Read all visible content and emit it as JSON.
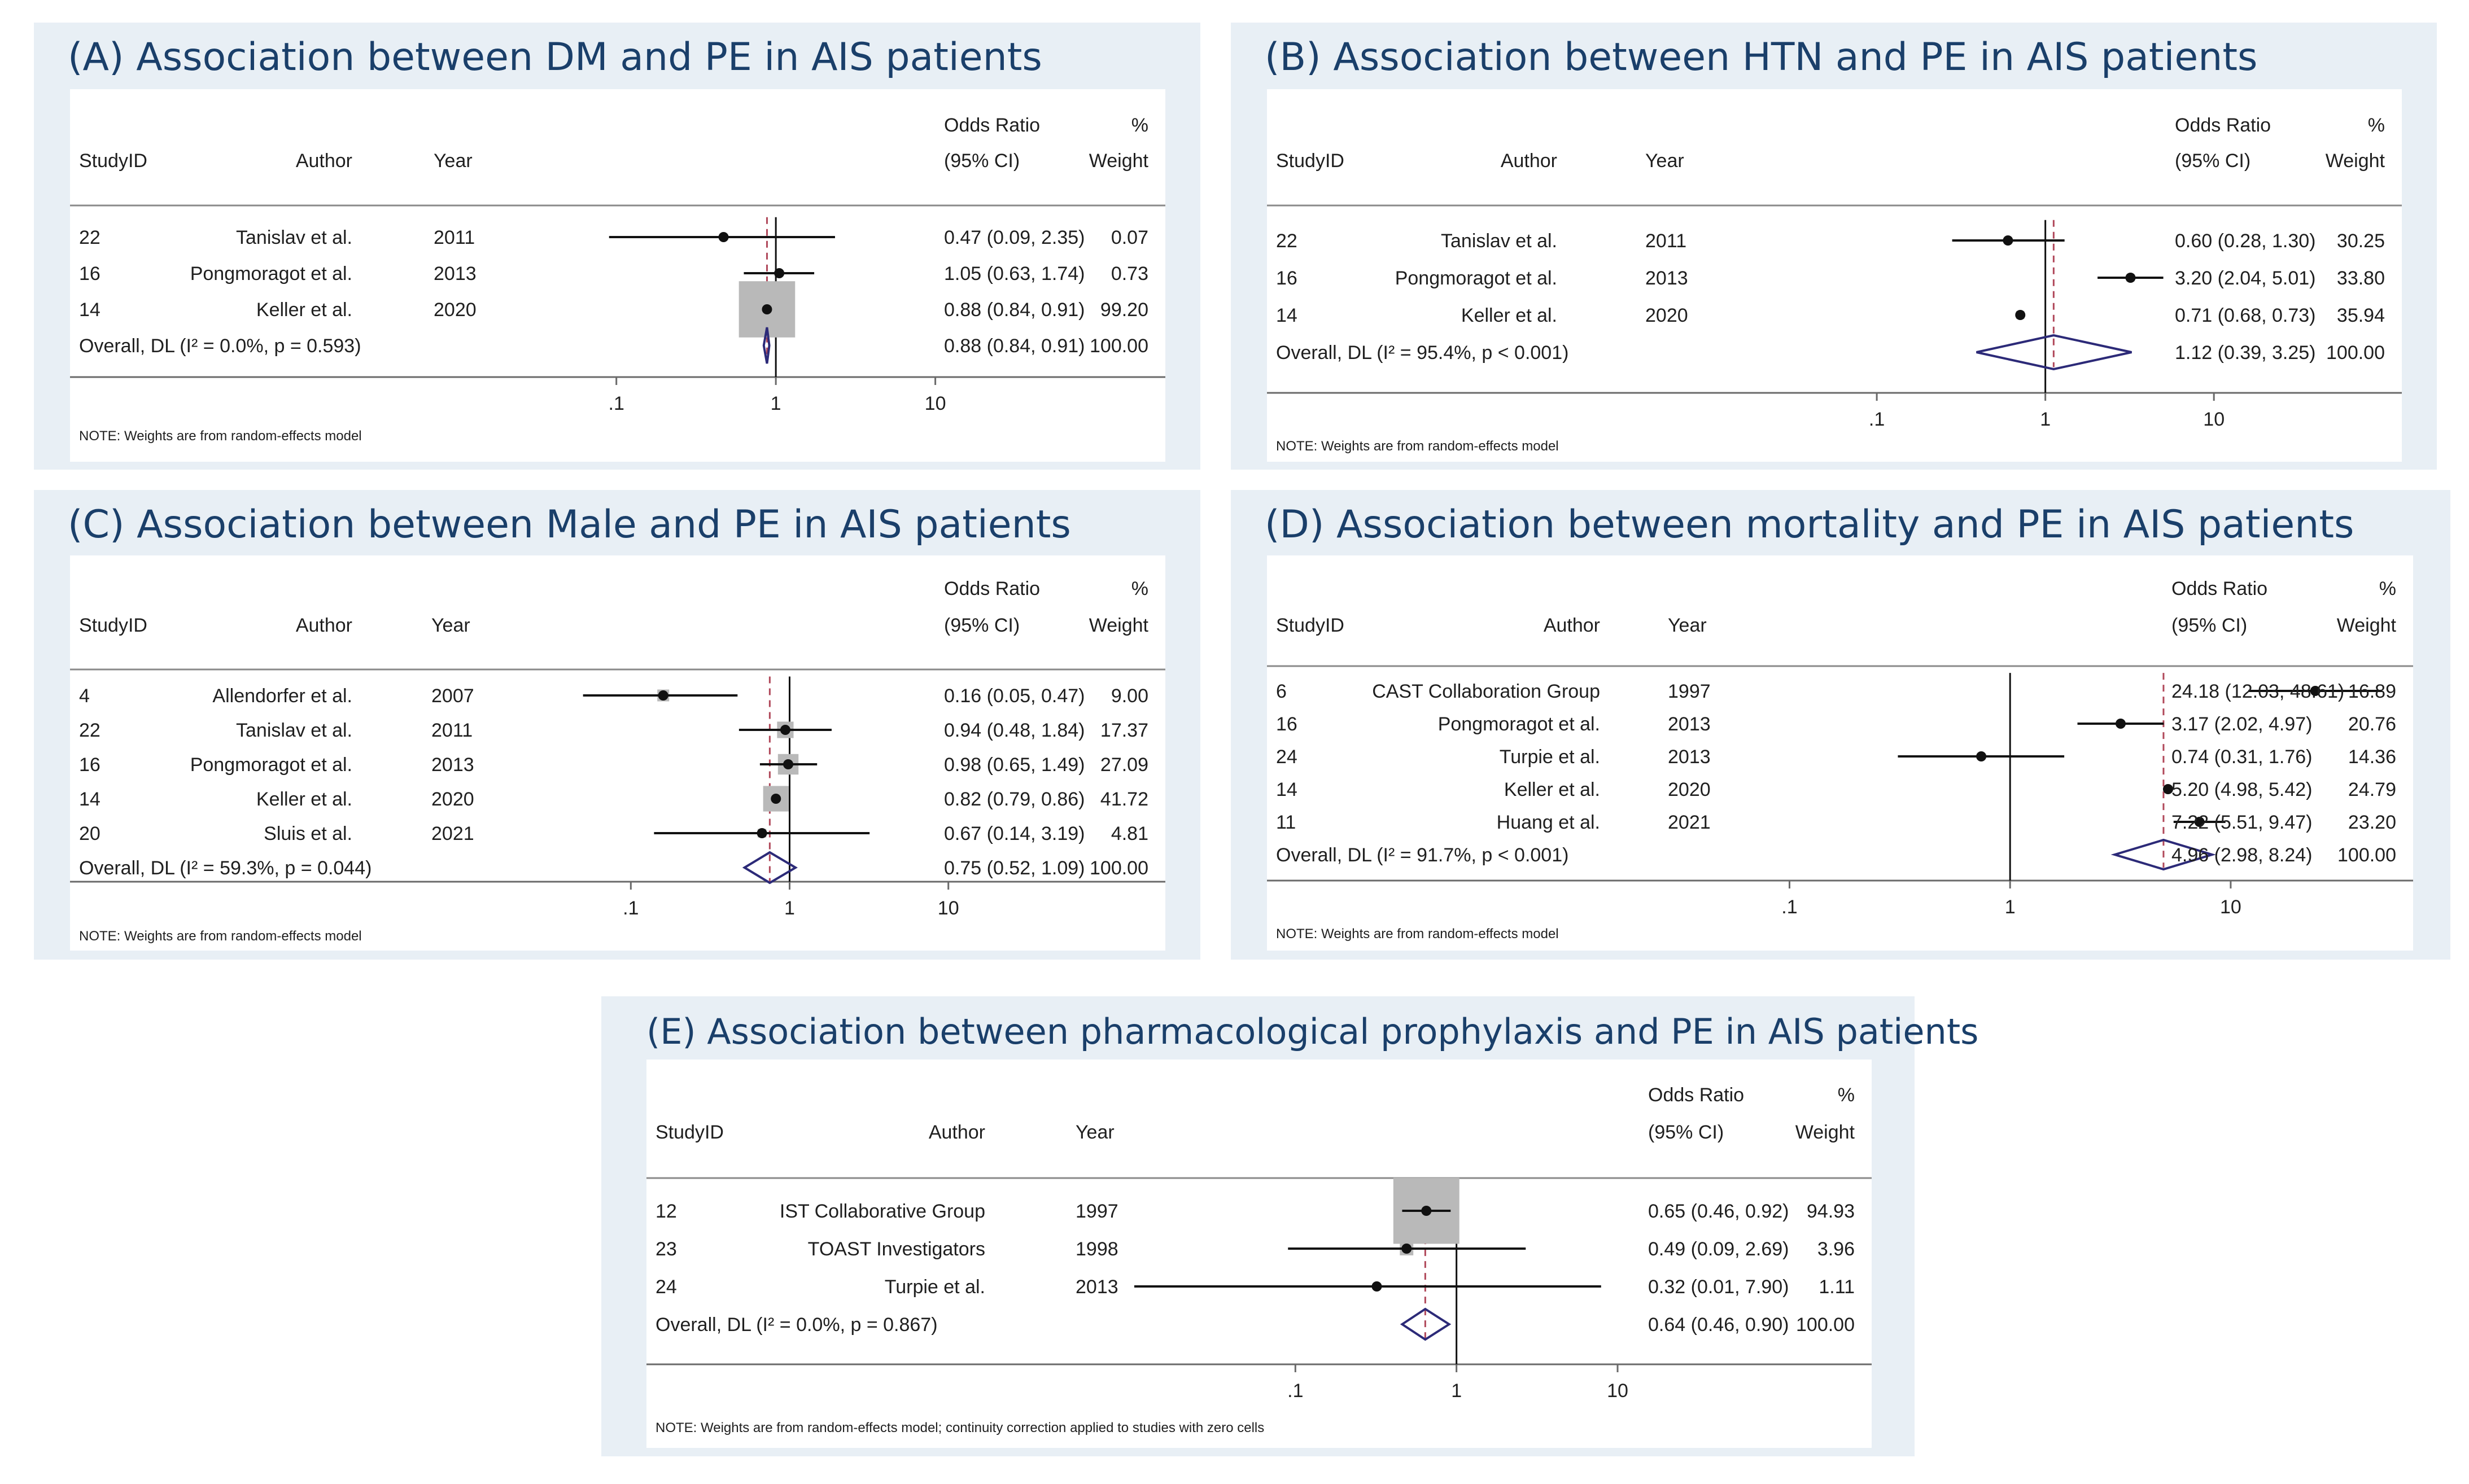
{
  "chart_data": [
    {
      "type": "forest",
      "title": "(A)    Association between DM and PE in AIS patients",
      "columns": {
        "studyid": "StudyID",
        "author": "Author",
        "year": "Year",
        "or_top": "Odds Ratio",
        "or_bottom": "(95% CI)",
        "w_top": "%",
        "w_bottom": "Weight"
      },
      "studies": [
        {
          "id": "22",
          "author": "Tanislav et al.",
          "year": "2011",
          "or": 0.47,
          "lo": 0.09,
          "hi": 2.35,
          "weight": 0.07,
          "ci_text": "0.47 (0.09, 2.35)",
          "weight_text": "0.07"
        },
        {
          "id": "16",
          "author": "Pongmoragot et al.",
          "year": "2013",
          "or": 1.05,
          "lo": 0.63,
          "hi": 1.74,
          "weight": 0.73,
          "ci_text": "1.05 (0.63, 1.74)",
          "weight_text": "0.73"
        },
        {
          "id": "14",
          "author": "Keller et al.",
          "year": "2020",
          "or": 0.88,
          "lo": 0.84,
          "hi": 0.91,
          "weight": 99.2,
          "ci_text": "0.88 (0.84, 0.91)",
          "weight_text": "99.20"
        }
      ],
      "overall": {
        "label": "Overall, DL (I² = 0.0%, p = 0.593)",
        "or": 0.88,
        "lo": 0.84,
        "hi": 0.91,
        "ci_text": "0.88 (0.84, 0.91)",
        "weight_text": "100.00"
      },
      "x_scale": "log",
      "xlim": [
        0.03,
        25
      ],
      "ticks": [
        0.1,
        1,
        10
      ],
      "tick_labels": [
        ".1",
        "1",
        "10"
      ],
      "note": "NOTE: Weights are from random-effects model"
    },
    {
      "type": "forest",
      "title": "(B)    Association between HTN and PE in AIS patients",
      "columns": {
        "studyid": "StudyID",
        "author": "Author",
        "year": "Year",
        "or_top": "Odds Ratio",
        "or_bottom": "(95% CI)",
        "w_top": "%",
        "w_bottom": "Weight"
      },
      "studies": [
        {
          "id": "22",
          "author": "Tanislav et al.",
          "year": "2011",
          "or": 0.6,
          "lo": 0.28,
          "hi": 1.3,
          "weight": 30.25,
          "ci_text": "0.60 (0.28, 1.30)",
          "weight_text": "30.25"
        },
        {
          "id": "16",
          "author": "Pongmoragot et al.",
          "year": "2013",
          "or": 3.2,
          "lo": 2.04,
          "hi": 5.01,
          "weight": 33.8,
          "ci_text": "3.20 (2.04, 5.01)",
          "weight_text": "33.80"
        },
        {
          "id": "14",
          "author": "Keller et al.",
          "year": "2020",
          "or": 0.71,
          "lo": 0.68,
          "hi": 0.73,
          "weight": 35.94,
          "ci_text": "0.71 (0.68, 0.73)",
          "weight_text": "35.94"
        }
      ],
      "overall": {
        "label": "Overall, DL (I² = 95.4%, p < 0.001)",
        "or": 1.12,
        "lo": 0.39,
        "hi": 3.25,
        "ci_text": "1.12 (0.39, 3.25)",
        "weight_text": "100.00"
      },
      "x_scale": "log",
      "xlim": [
        0.03,
        25
      ],
      "ticks": [
        0.1,
        1,
        10
      ],
      "tick_labels": [
        ".1",
        "1",
        "10"
      ],
      "note": "NOTE: Weights are from random-effects model"
    },
    {
      "type": "forest",
      "title": "(C)    Association between Male and PE in AIS patients",
      "columns": {
        "studyid": "StudyID",
        "author": "Author",
        "year": "Year",
        "or_top": "Odds Ratio",
        "or_bottom": "(95% CI)",
        "w_top": "%",
        "w_bottom": "Weight"
      },
      "studies": [
        {
          "id": "4",
          "author": "Allendorfer et al.",
          "year": "2007",
          "or": 0.16,
          "lo": 0.05,
          "hi": 0.47,
          "weight": 9.0,
          "ci_text": "0.16 (0.05, 0.47)",
          "weight_text": "9.00"
        },
        {
          "id": "22",
          "author": "Tanislav et al.",
          "year": "2011",
          "or": 0.94,
          "lo": 0.48,
          "hi": 1.84,
          "weight": 17.37,
          "ci_text": "0.94 (0.48, 1.84)",
          "weight_text": "17.37"
        },
        {
          "id": "16",
          "author": "Pongmoragot et al.",
          "year": "2013",
          "or": 0.98,
          "lo": 0.65,
          "hi": 1.49,
          "weight": 27.09,
          "ci_text": "0.98 (0.65, 1.49)",
          "weight_text": "27.09"
        },
        {
          "id": "14",
          "author": "Keller et al.",
          "year": "2020",
          "or": 0.82,
          "lo": 0.79,
          "hi": 0.86,
          "weight": 41.72,
          "ci_text": "0.82 (0.79, 0.86)",
          "weight_text": "41.72"
        },
        {
          "id": "20",
          "author": "Sluis et al.",
          "year": "2021",
          "or": 0.67,
          "lo": 0.14,
          "hi": 3.19,
          "weight": 4.81,
          "ci_text": "0.67 (0.14, 3.19)",
          "weight_text": "4.81"
        }
      ],
      "overall": {
        "label": "Overall, DL (I² = 59.3%, p = 0.044)",
        "or": 0.75,
        "lo": 0.52,
        "hi": 1.09,
        "ci_text": "0.75 (0.52, 1.09)",
        "weight_text": "100.00"
      },
      "x_scale": "log",
      "xlim": [
        0.025,
        22
      ],
      "ticks": [
        0.1,
        1,
        10
      ],
      "tick_labels": [
        ".1",
        "1",
        "10"
      ],
      "note": "NOTE: Weights are from random-effects model"
    },
    {
      "type": "forest",
      "title": "(D)  Association between mortality and PE in AIS patients",
      "columns": {
        "studyid": "StudyID",
        "author": "Author",
        "year": "Year",
        "or_top": "Odds Ratio",
        "or_bottom": "(95% CI)",
        "w_top": "%",
        "w_bottom": "Weight"
      },
      "studies": [
        {
          "id": "6",
          "author": "CAST Collaboration Group",
          "year": "1997",
          "or": 24.18,
          "lo": 12.03,
          "hi": 48.61,
          "weight": 16.89,
          "ci_text": "24.18 (12.03, 48.61)",
          "weight_text": "16.89"
        },
        {
          "id": "16",
          "author": "Pongmoragot et al.",
          "year": "2013",
          "or": 3.17,
          "lo": 2.02,
          "hi": 4.97,
          "weight": 20.76,
          "ci_text": "3.17 (2.02, 4.97)",
          "weight_text": "20.76"
        },
        {
          "id": "24",
          "author": "Turpie et al.",
          "year": "2013",
          "or": 0.74,
          "lo": 0.31,
          "hi": 1.76,
          "weight": 14.36,
          "ci_text": "0.74 (0.31, 1.76)",
          "weight_text": "14.36"
        },
        {
          "id": "14",
          "author": "Keller et al.",
          "year": "2020",
          "or": 5.2,
          "lo": 4.98,
          "hi": 5.42,
          "weight": 24.79,
          "ci_text": "5.20 (4.98, 5.42)",
          "weight_text": "24.79"
        },
        {
          "id": "11",
          "author": "Huang et al.",
          "year": "2021",
          "or": 7.22,
          "lo": 5.51,
          "hi": 9.47,
          "weight": 23.2,
          "ci_text": "7.22 (5.51, 9.47)",
          "weight_text": "23.20"
        }
      ],
      "overall": {
        "label": "Overall, DL (I² = 91.7%, p < 0.001)",
        "or": 4.96,
        "lo": 2.98,
        "hi": 8.24,
        "ci_text": "4.96 (2.98, 8.24)",
        "weight_text": "100.00"
      },
      "x_scale": "log",
      "xlim": [
        0.04,
        50
      ],
      "ticks": [
        0.1,
        1,
        10
      ],
      "tick_labels": [
        ".1",
        "1",
        "10"
      ],
      "note": "NOTE: Weights are from random-effects model"
    },
    {
      "type": "forest",
      "title": "(E) Association between pharmacological prophylaxis and PE in AIS patients",
      "columns": {
        "studyid": "StudyID",
        "author": "Author",
        "year": "Year",
        "or_top": "Odds Ratio",
        "or_bottom": "(95% CI)",
        "w_top": "%",
        "w_bottom": "Weight"
      },
      "studies": [
        {
          "id": "12",
          "author": "IST Collaborative Group",
          "year": "1997",
          "or": 0.65,
          "lo": 0.46,
          "hi": 0.92,
          "weight": 94.93,
          "ci_text": "0.65 (0.46, 0.92)",
          "weight_text": "94.93"
        },
        {
          "id": "23",
          "author": "TOAST Investigators",
          "year": "1998",
          "or": 0.49,
          "lo": 0.09,
          "hi": 2.69,
          "weight": 3.96,
          "ci_text": "0.49 (0.09, 2.69)",
          "weight_text": "3.96"
        },
        {
          "id": "24",
          "author": "Turpie et al.",
          "year": "2013",
          "or": 0.32,
          "lo": 0.01,
          "hi": 7.9,
          "weight": 1.11,
          "ci_text": "0.32 (0.01, 7.90)",
          "weight_text": "1.11"
        }
      ],
      "overall": {
        "label": "Overall, DL (I² = 0.0%, p = 0.867)",
        "or": 0.64,
        "lo": 0.46,
        "hi": 0.9,
        "ci_text": "0.64 (0.46, 0.90)",
        "weight_text": "100.00"
      },
      "x_scale": "log",
      "xlim": [
        0.01,
        10
      ],
      "ticks": [
        0.1,
        1,
        10
      ],
      "tick_labels": [
        ".1",
        "1",
        "10"
      ],
      "note": "NOTE: Weights are from random-effects model; continuity correction applied to studies with zero cells"
    }
  ]
}
